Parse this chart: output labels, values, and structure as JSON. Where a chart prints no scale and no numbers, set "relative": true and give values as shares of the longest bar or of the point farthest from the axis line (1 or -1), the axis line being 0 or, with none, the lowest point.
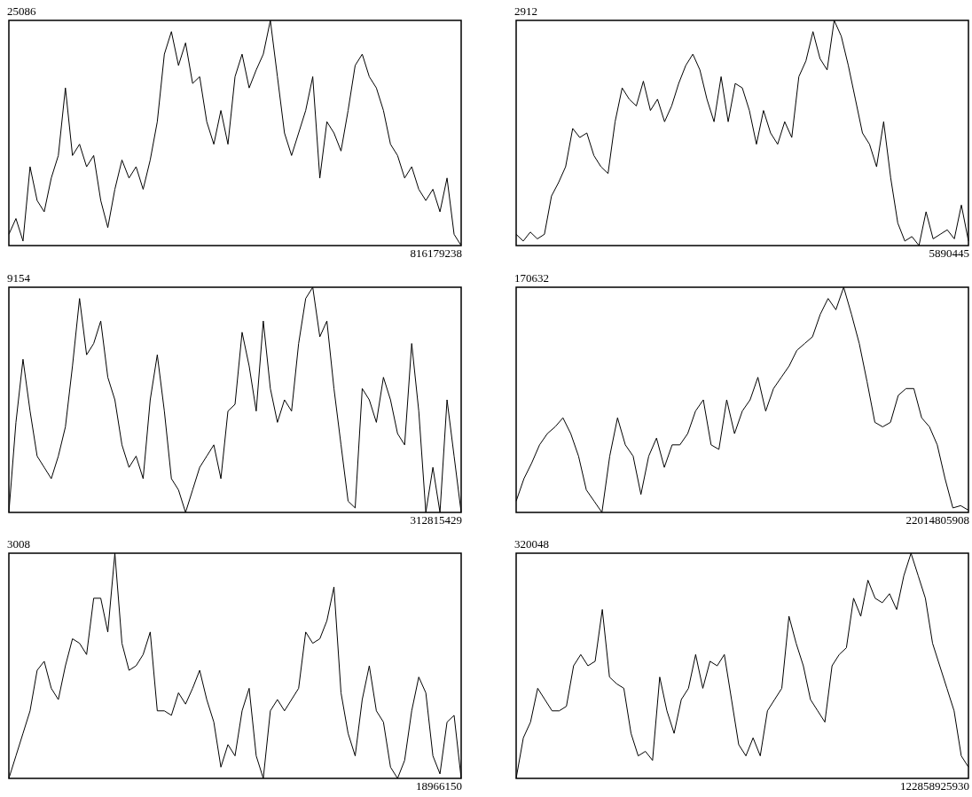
{
  "chart_data": [
    {
      "type": "line",
      "relative": true,
      "color": "#000000",
      "annotations": [
        "25086",
        "816179238"
      ],
      "categories": [
        null,
        null,
        null,
        null,
        null,
        null,
        null,
        null,
        null,
        null,
        null,
        null,
        null,
        null,
        null,
        null,
        null,
        null,
        null,
        null,
        null,
        null,
        null,
        null,
        null,
        null,
        null,
        null,
        null,
        null,
        null,
        null,
        null,
        null,
        null,
        null,
        null,
        null,
        null,
        null,
        null,
        null,
        null,
        null,
        null,
        null,
        null,
        null,
        null,
        null,
        null,
        null,
        null,
        null,
        null,
        null,
        null,
        null,
        null,
        null,
        null,
        null,
        null,
        null,
        null
      ],
      "values": [
        0.05,
        0.12,
        0.02,
        0.35,
        0.2,
        0.15,
        0.3,
        0.4,
        0.7,
        0.4,
        0.45,
        0.35,
        0.4,
        0.2,
        0.08,
        0.25,
        0.38,
        0.3,
        0.35,
        0.25,
        0.38,
        0.55,
        0.85,
        0.95,
        0.8,
        0.9,
        0.72,
        0.75,
        0.55,
        0.45,
        0.6,
        0.45,
        0.75,
        0.85,
        0.7,
        0.78,
        0.85,
        1.0,
        0.75,
        0.5,
        0.4,
        0.5,
        0.6,
        0.75,
        0.3,
        0.55,
        0.5,
        0.42,
        0.6,
        0.8,
        0.85,
        0.75,
        0.7,
        0.6,
        0.45,
        0.4,
        0.3,
        0.35,
        0.25,
        0.2,
        0.25,
        0.15,
        0.3,
        0.05,
        0.0
      ]
    },
    {
      "type": "line",
      "relative": true,
      "color": "#000000",
      "annotations": [
        "2912",
        "5890445"
      ],
      "categories": [
        null,
        null,
        null,
        null,
        null,
        null,
        null,
        null,
        null,
        null,
        null,
        null,
        null,
        null,
        null,
        null,
        null,
        null,
        null,
        null,
        null,
        null,
        null,
        null,
        null,
        null,
        null,
        null,
        null,
        null,
        null,
        null,
        null,
        null,
        null,
        null,
        null,
        null,
        null,
        null,
        null,
        null,
        null,
        null,
        null,
        null,
        null,
        null,
        null,
        null,
        null,
        null,
        null,
        null,
        null,
        null,
        null,
        null,
        null,
        null,
        null,
        null,
        null,
        null,
        null
      ],
      "values": [
        0.05,
        0.02,
        0.06,
        0.03,
        0.05,
        0.22,
        0.28,
        0.35,
        0.52,
        0.48,
        0.5,
        0.4,
        0.35,
        0.32,
        0.55,
        0.7,
        0.65,
        0.62,
        0.73,
        0.6,
        0.65,
        0.55,
        0.62,
        0.72,
        0.8,
        0.85,
        0.78,
        0.65,
        0.55,
        0.75,
        0.55,
        0.72,
        0.7,
        0.6,
        0.45,
        0.6,
        0.5,
        0.45,
        0.55,
        0.48,
        0.75,
        0.82,
        0.95,
        0.83,
        0.78,
        1.0,
        0.93,
        0.8,
        0.65,
        0.5,
        0.45,
        0.35,
        0.55,
        0.3,
        0.1,
        0.02,
        0.04,
        0.0,
        0.15,
        0.03,
        0.05,
        0.07,
        0.03,
        0.18,
        0.02
      ]
    },
    {
      "type": "line",
      "relative": true,
      "color": "#000000",
      "annotations": [
        "9154",
        "312815429"
      ],
      "categories": [
        null,
        null,
        null,
        null,
        null,
        null,
        null,
        null,
        null,
        null,
        null,
        null,
        null,
        null,
        null,
        null,
        null,
        null,
        null,
        null,
        null,
        null,
        null,
        null,
        null,
        null,
        null,
        null,
        null,
        null,
        null,
        null,
        null,
        null,
        null,
        null,
        null,
        null,
        null,
        null,
        null,
        null,
        null,
        null,
        null,
        null,
        null,
        null,
        null,
        null,
        null,
        null,
        null,
        null,
        null,
        null,
        null,
        null,
        null,
        null,
        null,
        null,
        null,
        null,
        null
      ],
      "values": [
        0.0,
        0.4,
        0.68,
        0.45,
        0.25,
        0.2,
        0.15,
        0.25,
        0.38,
        0.65,
        0.95,
        0.7,
        0.75,
        0.85,
        0.6,
        0.5,
        0.3,
        0.2,
        0.25,
        0.15,
        0.5,
        0.7,
        0.45,
        0.15,
        0.1,
        0.0,
        0.1,
        0.2,
        0.25,
        0.3,
        0.15,
        0.45,
        0.48,
        0.8,
        0.65,
        0.45,
        0.85,
        0.55,
        0.4,
        0.5,
        0.45,
        0.75,
        0.95,
        1.0,
        0.78,
        0.85,
        0.55,
        0.3,
        0.05,
        0.02,
        0.55,
        0.5,
        0.4,
        0.6,
        0.5,
        0.35,
        0.3,
        0.75,
        0.45,
        0.0,
        0.2,
        0.0,
        0.5,
        0.25,
        0.0
      ]
    },
    {
      "type": "line",
      "relative": true,
      "color": "#000000",
      "annotations": [
        "170632",
        "22014805908"
      ],
      "categories": [
        null,
        null,
        null,
        null,
        null,
        null,
        null,
        null,
        null,
        null,
        null,
        null,
        null,
        null,
        null,
        null,
        null,
        null,
        null,
        null,
        null,
        null,
        null,
        null,
        null,
        null,
        null,
        null,
        null,
        null,
        null,
        null,
        null,
        null,
        null,
        null,
        null,
        null,
        null,
        null,
        null,
        null,
        null,
        null,
        null,
        null,
        null,
        null,
        null,
        null,
        null,
        null,
        null,
        null,
        null,
        null,
        null,
        null,
        null
      ],
      "values": [
        0.05,
        0.15,
        0.22,
        0.3,
        0.35,
        0.38,
        0.42,
        0.35,
        0.25,
        0.1,
        0.05,
        0.0,
        0.25,
        0.42,
        0.3,
        0.25,
        0.08,
        0.25,
        0.33,
        0.2,
        0.3,
        0.3,
        0.35,
        0.45,
        0.5,
        0.3,
        0.28,
        0.5,
        0.35,
        0.45,
        0.5,
        0.6,
        0.45,
        0.55,
        0.6,
        0.65,
        0.72,
        0.75,
        0.78,
        0.88,
        0.95,
        0.9,
        1.0,
        0.88,
        0.75,
        0.58,
        0.4,
        0.38,
        0.4,
        0.52,
        0.55,
        0.55,
        0.42,
        0.38,
        0.3,
        0.15,
        0.02,
        0.03,
        0.01
      ]
    },
    {
      "type": "line",
      "relative": true,
      "color": "#000000",
      "annotations": [
        "3008",
        "18966150"
      ],
      "categories": [
        null,
        null,
        null,
        null,
        null,
        null,
        null,
        null,
        null,
        null,
        null,
        null,
        null,
        null,
        null,
        null,
        null,
        null,
        null,
        null,
        null,
        null,
        null,
        null,
        null,
        null,
        null,
        null,
        null,
        null,
        null,
        null,
        null,
        null,
        null,
        null,
        null,
        null,
        null,
        null,
        null,
        null,
        null,
        null,
        null,
        null,
        null,
        null,
        null,
        null,
        null,
        null,
        null,
        null,
        null,
        null,
        null,
        null,
        null,
        null,
        null,
        null,
        null,
        null,
        null
      ],
      "values": [
        0.0,
        0.1,
        0.2,
        0.3,
        0.48,
        0.52,
        0.4,
        0.35,
        0.5,
        0.62,
        0.6,
        0.55,
        0.8,
        0.8,
        0.65,
        1.0,
        0.6,
        0.48,
        0.5,
        0.55,
        0.65,
        0.3,
        0.3,
        0.28,
        0.38,
        0.33,
        0.4,
        0.48,
        0.35,
        0.25,
        0.05,
        0.15,
        0.1,
        0.3,
        0.4,
        0.1,
        0.0,
        0.3,
        0.35,
        0.3,
        0.35,
        0.4,
        0.65,
        0.6,
        0.62,
        0.7,
        0.85,
        0.38,
        0.2,
        0.1,
        0.35,
        0.5,
        0.3,
        0.25,
        0.05,
        0.0,
        0.08,
        0.3,
        0.45,
        0.38,
        0.1,
        0.02,
        0.25,
        0.28,
        0.0
      ]
    },
    {
      "type": "line",
      "relative": true,
      "color": "#000000",
      "annotations": [
        "320048",
        "122858925930"
      ],
      "categories": [
        null,
        null,
        null,
        null,
        null,
        null,
        null,
        null,
        null,
        null,
        null,
        null,
        null,
        null,
        null,
        null,
        null,
        null,
        null,
        null,
        null,
        null,
        null,
        null,
        null,
        null,
        null,
        null,
        null,
        null,
        null,
        null,
        null,
        null,
        null,
        null,
        null,
        null,
        null,
        null,
        null,
        null,
        null,
        null,
        null,
        null,
        null,
        null,
        null,
        null,
        null,
        null,
        null,
        null,
        null,
        null,
        null,
        null,
        null,
        null,
        null,
        null,
        null,
        null
      ],
      "values": [
        0.0,
        0.18,
        0.25,
        0.4,
        0.35,
        0.3,
        0.3,
        0.32,
        0.5,
        0.55,
        0.5,
        0.52,
        0.75,
        0.45,
        0.42,
        0.4,
        0.2,
        0.1,
        0.12,
        0.08,
        0.45,
        0.3,
        0.2,
        0.35,
        0.4,
        0.55,
        0.4,
        0.52,
        0.5,
        0.55,
        0.35,
        0.15,
        0.1,
        0.18,
        0.1,
        0.3,
        0.35,
        0.4,
        0.72,
        0.6,
        0.5,
        0.35,
        0.3,
        0.25,
        0.5,
        0.55,
        0.58,
        0.8,
        0.72,
        0.88,
        0.8,
        0.78,
        0.82,
        0.75,
        0.9,
        1.0,
        0.9,
        0.8,
        0.6,
        0.5,
        0.4,
        0.3,
        0.1,
        0.05
      ]
    }
  ]
}
